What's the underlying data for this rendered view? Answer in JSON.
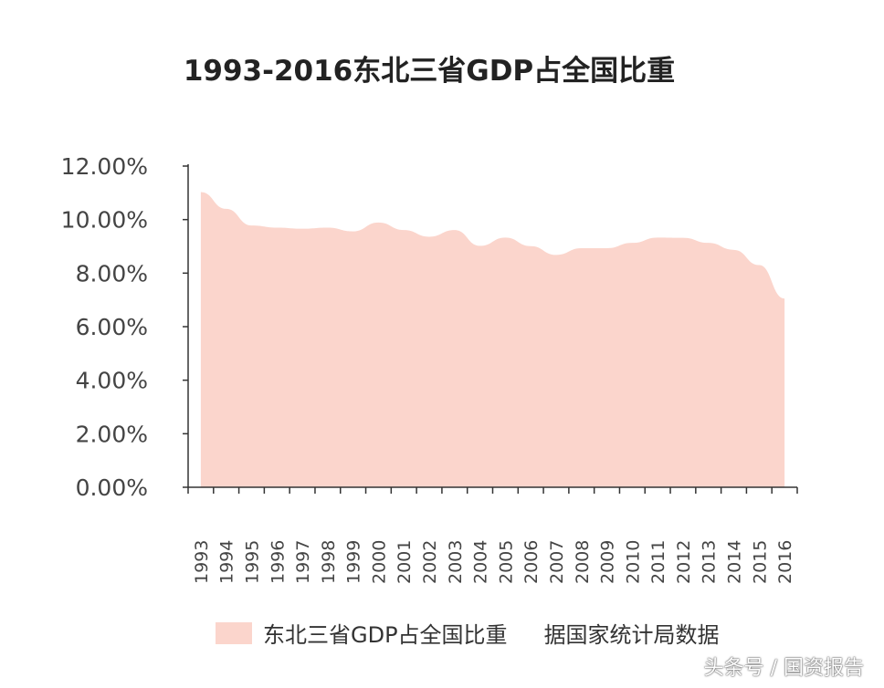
{
  "chart_data": {
    "type": "area",
    "title": "1993-2016东北三省GDP占全国比重",
    "categories": [
      "1993",
      "1994",
      "1995",
      "1996",
      "1997",
      "1998",
      "1999",
      "2000",
      "2001",
      "2002",
      "2003",
      "2004",
      "2005",
      "2006",
      "2007",
      "2008",
      "2009",
      "2010",
      "2011",
      "2012",
      "2013",
      "2014",
      "2015",
      "2016"
    ],
    "series": [
      {
        "name": "东北三省GDP占全国比重",
        "values": [
          11.03,
          10.4,
          9.78,
          9.7,
          9.66,
          9.7,
          9.56,
          9.89,
          9.61,
          9.36,
          9.61,
          9.02,
          9.33,
          9.01,
          8.68,
          8.93,
          8.93,
          9.13,
          9.33,
          9.32,
          9.13,
          8.87,
          8.3,
          7.05
        ]
      }
    ],
    "yticks": [
      "0.00%",
      "2.00%",
      "4.00%",
      "6.00%",
      "8.00%",
      "10.00%",
      "12.00%"
    ],
    "ylim": [
      0,
      12
    ],
    "grid": false,
    "legend": "bottom",
    "color": "#fbd5cc"
  },
  "source_note": "据国家统计局数据",
  "watermark": "头条号 / 国资报告"
}
